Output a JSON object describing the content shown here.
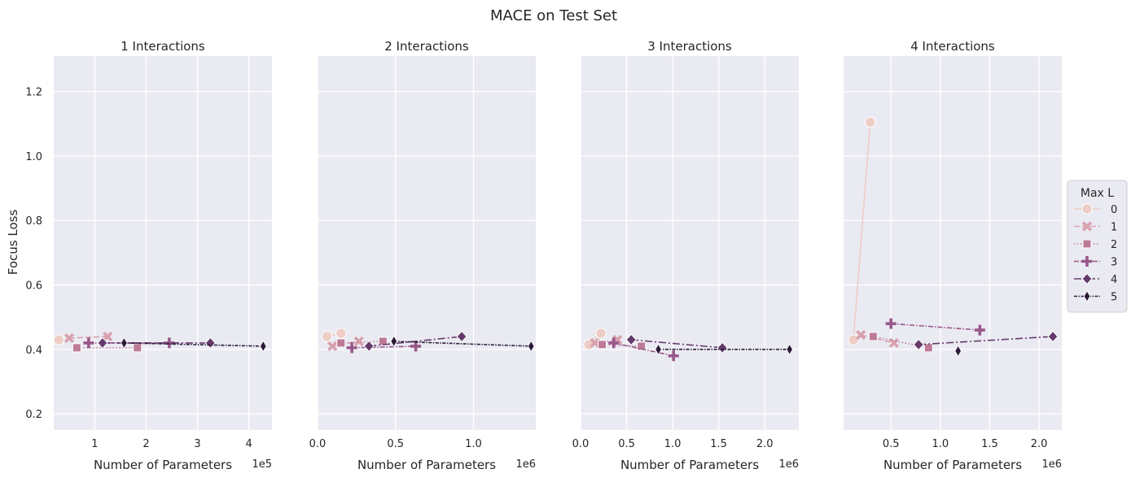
{
  "title": "MACE on Test Set",
  "chart_data": {
    "type": "line",
    "ylabel": "Focus Loss",
    "xlabel": "Number of Parameters",
    "ylim": [
      0.15,
      1.31
    ],
    "yticks": [
      0.2,
      0.4,
      0.6,
      0.8,
      1.0,
      1.2
    ],
    "yticklabels": [
      "0.2",
      "0.4",
      "0.6",
      "0.8",
      "1.0",
      "1.2"
    ],
    "grid": true,
    "legend": {
      "title": "Max L",
      "placement": "right",
      "entries": [
        "0",
        "1",
        "2",
        "3",
        "4",
        "5"
      ]
    },
    "series_style": [
      {
        "name": "0",
        "color": "#edcdc6",
        "marker": "circle",
        "dash": "solid"
      },
      {
        "name": "1",
        "color": "#d8a1ad",
        "marker": "x",
        "dash": "dashed"
      },
      {
        "name": "2",
        "color": "#bd7a96",
        "marker": "square",
        "dash": "dotted"
      },
      {
        "name": "3",
        "color": "#98588a",
        "marker": "plus",
        "dash": "dashdot"
      },
      {
        "name": "4",
        "color": "#653a6b",
        "marker": "diamond",
        "dash": "dashdot2"
      },
      {
        "name": "5",
        "color": "#2b1b37",
        "marker": "thin-diamond",
        "dash": "densedash"
      }
    ],
    "panels": [
      {
        "title": "1 Interactions",
        "xlim": [
          20000,
          445000
        ],
        "xticks": [
          100000,
          200000,
          300000,
          400000
        ],
        "xticklabels": [
          "1",
          "2",
          "3",
          "4"
        ],
        "x_offset_label": "1e5",
        "show_ylabel": true,
        "series": [
          {
            "name": "0",
            "x": [
              30000
            ],
            "y": [
              0.43
            ]
          },
          {
            "name": "1",
            "x": [
              50000,
              125000
            ],
            "y": [
              0.435,
              0.44
            ]
          },
          {
            "name": "2",
            "x": [
              65000,
              183000
            ],
            "y": [
              0.405,
              0.405
            ]
          },
          {
            "name": "3",
            "x": [
              88000,
              245000
            ],
            "y": [
              0.42,
              0.42
            ]
          },
          {
            "name": "4",
            "x": [
              115000,
              325000
            ],
            "y": [
              0.42,
              0.42
            ]
          },
          {
            "name": "5",
            "x": [
              157000,
              428000
            ],
            "y": [
              0.42,
              0.41
            ]
          }
        ]
      },
      {
        "title": "2 Interactions",
        "xlim": [
          0,
          1400000
        ],
        "xticks": [
          0,
          500000,
          1000000
        ],
        "xticklabels": [
          "0.0",
          "0.5",
          "1.0"
        ],
        "x_offset_label": "1e6",
        "show_ylabel": false,
        "series": [
          {
            "name": "0",
            "x": [
              60000,
              150000
            ],
            "y": [
              0.44,
              0.45
            ]
          },
          {
            "name": "1",
            "x": [
              95000,
              265000
            ],
            "y": [
              0.41,
              0.425
            ]
          },
          {
            "name": "2",
            "x": [
              150000,
              420000
            ],
            "y": [
              0.42,
              0.425
            ]
          },
          {
            "name": "3",
            "x": [
              220000,
              630000
            ],
            "y": [
              0.405,
              0.41
            ]
          },
          {
            "name": "4",
            "x": [
              330000,
              925000
            ],
            "y": [
              0.41,
              0.44
            ]
          },
          {
            "name": "5",
            "x": [
              490000,
              1370000
            ],
            "y": [
              0.425,
              0.41
            ]
          }
        ]
      },
      {
        "title": "3 Interactions",
        "xlim": [
          0,
          2370000
        ],
        "xticks": [
          0,
          500000,
          1000000,
          1500000,
          2000000
        ],
        "xticklabels": [
          "0.0",
          "0.5",
          "1.0",
          "1.5",
          "2.0"
        ],
        "x_offset_label": "1e6",
        "show_ylabel": false,
        "series": [
          {
            "name": "0",
            "x": [
              90000,
              220000
            ],
            "y": [
              0.415,
              0.45
            ]
          },
          {
            "name": "1",
            "x": [
              155000,
              400000
            ],
            "y": [
              0.42,
              0.43
            ]
          },
          {
            "name": "2",
            "x": [
              235000,
              660000
            ],
            "y": [
              0.415,
              0.41
            ]
          },
          {
            "name": "3",
            "x": [
              360000,
              1010000
            ],
            "y": [
              0.42,
              0.38
            ]
          },
          {
            "name": "4",
            "x": [
              550000,
              1540000
            ],
            "y": [
              0.43,
              0.405
            ]
          },
          {
            "name": "5",
            "x": [
              845000,
              2270000
            ],
            "y": [
              0.4,
              0.4
            ]
          }
        ]
      },
      {
        "title": "4 Interactions",
        "xlim": [
          20000,
          2230000
        ],
        "xticks": [
          500000,
          1000000,
          1500000,
          2000000
        ],
        "xticklabels": [
          "0.5",
          "1.0",
          "1.5",
          "2.0"
        ],
        "x_offset_label": "1e6",
        "show_ylabel": false,
        "series": [
          {
            "name": "0",
            "x": [
              120000,
              290000
            ],
            "y": [
              0.43,
              1.105
            ]
          },
          {
            "name": "1",
            "x": [
              195000,
              530000
            ],
            "y": [
              0.445,
              0.42
            ]
          },
          {
            "name": "2",
            "x": [
              320000,
              880000
            ],
            "y": [
              0.44,
              0.405
            ]
          },
          {
            "name": "3",
            "x": [
              500000,
              1400000
            ],
            "y": [
              0.48,
              0.46
            ]
          },
          {
            "name": "4",
            "x": [
              780000,
              2140000
            ],
            "y": [
              0.415,
              0.44
            ]
          },
          {
            "name": "5",
            "x": [
              1180000
            ],
            "y": [
              0.395
            ]
          }
        ]
      }
    ]
  }
}
